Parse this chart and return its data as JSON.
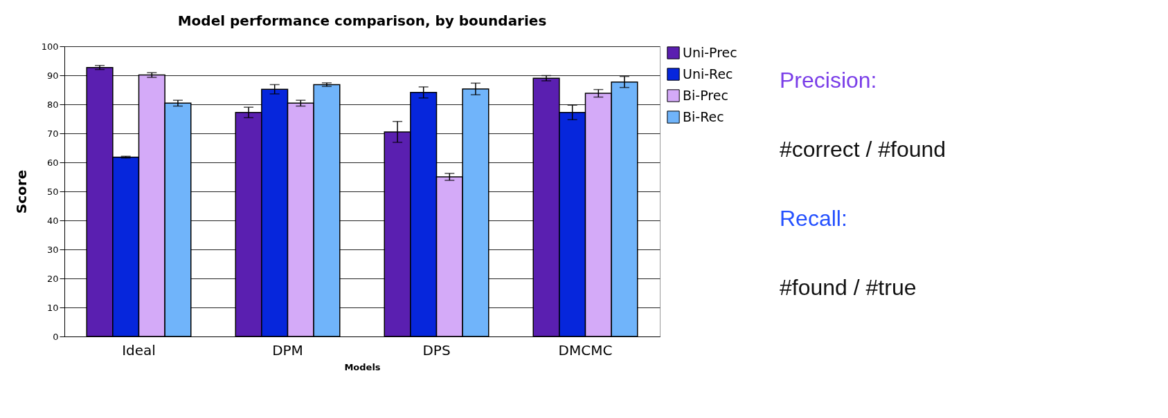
{
  "chart_data": {
    "type": "bar",
    "title": "Model performance comparison, by boundaries",
    "xlabel": "Models",
    "ylabel": "Score",
    "categories": [
      "Ideal",
      "DPM",
      "DPS",
      "DMCMC"
    ],
    "series": [
      {
        "name": "Uni-Prec",
        "color": "#5a1fb0",
        "values": [
          92.7,
          77.2,
          70.5,
          89.0
        ],
        "errors": [
          0.7,
          1.8,
          3.6,
          0.9
        ]
      },
      {
        "name": "Uni-Rec",
        "color": "#0626dc",
        "values": [
          61.8,
          85.2,
          84.1,
          77.2
        ],
        "errors": [
          0.3,
          1.6,
          1.9,
          2.5
        ]
      },
      {
        "name": "Bi-Prec",
        "color": "#d4aaf8",
        "values": [
          90.1,
          80.4,
          55.0,
          83.8
        ],
        "errors": [
          0.8,
          1.0,
          1.2,
          1.3
        ]
      },
      {
        "name": "Bi-Rec",
        "color": "#70b4fa",
        "values": [
          80.4,
          86.8,
          85.3,
          87.7
        ],
        "errors": [
          1.0,
          0.6,
          2.0,
          1.9
        ]
      }
    ],
    "ylim": [
      0,
      100
    ],
    "yticks": [
      0,
      10,
      20,
      30,
      40,
      50,
      60,
      70,
      80,
      90,
      100
    ],
    "grid": "y",
    "legend": "right",
    "annotations": [
      "Precision:",
      "#correct / #found",
      "Recall:",
      "#found / #true"
    ]
  }
}
